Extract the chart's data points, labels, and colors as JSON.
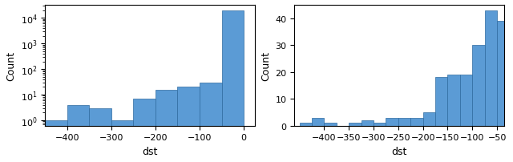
{
  "bar_color": "#5B9BD5",
  "bar_edgecolor": "#2d6a9f",
  "xlabel": "dst",
  "ylabel": "Count",
  "left_bin_edges": [
    -450,
    -400,
    -350,
    -300,
    -250,
    -200,
    -150,
    -100,
    -50,
    0
  ],
  "left_bin_heights": [
    1,
    4,
    3,
    1,
    7,
    15,
    20,
    30,
    20000
  ],
  "left_xlim": [
    -450,
    25
  ],
  "left_xticks": [
    -400,
    -300,
    -200,
    -100,
    0
  ],
  "right_bin_edges": [
    -450,
    -425,
    -400,
    -375,
    -350,
    -325,
    -300,
    -275,
    -250,
    -225,
    -200,
    -175,
    -150,
    -125,
    -100,
    -75,
    -50,
    -25
  ],
  "right_bin_heights": [
    1,
    3,
    1,
    0,
    1,
    2,
    1,
    3,
    3,
    3,
    5,
    18,
    19,
    19,
    30,
    43,
    39
  ],
  "right_xlim": [
    -460,
    -35
  ],
  "right_xticks": [
    -400,
    -350,
    -300,
    -250,
    -200,
    -150,
    -100,
    -50
  ],
  "right_ylim": [
    0,
    45
  ],
  "right_yticks": [
    0,
    10,
    20,
    30,
    40
  ]
}
